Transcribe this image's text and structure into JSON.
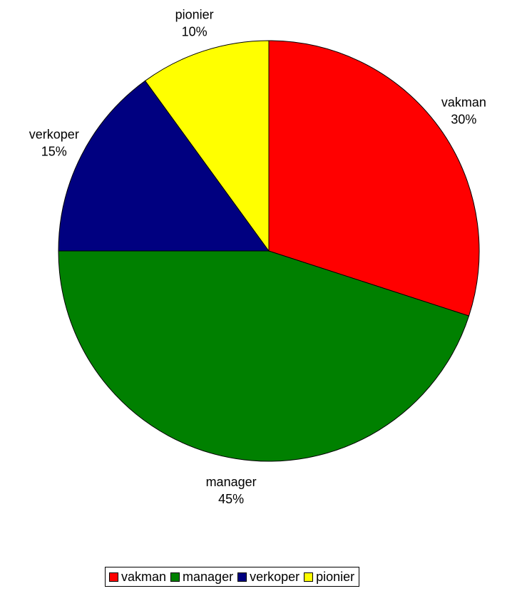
{
  "chart_data": {
    "type": "pie",
    "title": "",
    "categories": [
      "vakman",
      "manager",
      "verkoper",
      "pionier"
    ],
    "values": [
      30,
      45,
      15,
      10
    ],
    "value_labels": [
      "30%",
      "45%",
      "15%",
      "10%"
    ],
    "colors": [
      "#ff0000",
      "#008000",
      "#000080",
      "#ffff00"
    ],
    "start_angle_deg": 0,
    "direction": "clockwise",
    "legend": {
      "position": "bottom",
      "entries": [
        "vakman",
        "manager",
        "verkoper",
        "pionier"
      ]
    }
  }
}
